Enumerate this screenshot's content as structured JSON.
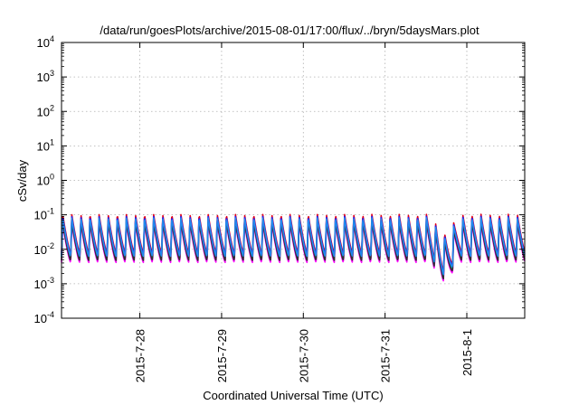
{
  "chart_data": {
    "type": "line",
    "title": "/data/run/goesPlots/archive/2015-08-01/17:00/flux/../bryn/5daysMars.plot",
    "xlabel": "Coordinated Universal Time (UTC)",
    "ylabel": "cSv/day",
    "y_scale": "log",
    "ylim": [
      0.0001,
      10000
    ],
    "xlim": [
      "2015-07-27 01:00",
      "2015-08-01 17:00"
    ],
    "grid": true,
    "legend": "none",
    "y_ticks": [
      {
        "base": "10",
        "exp": "4"
      },
      {
        "base": "10",
        "exp": "3"
      },
      {
        "base": "10",
        "exp": "2"
      },
      {
        "base": "10",
        "exp": "1"
      },
      {
        "base": "10",
        "exp": "0"
      },
      {
        "base": "10",
        "exp": "-1"
      },
      {
        "base": "10",
        "exp": "-2"
      },
      {
        "base": "10",
        "exp": "-3"
      },
      {
        "base": "10",
        "exp": "-4"
      }
    ],
    "x_ticks": [
      "2015-7-28",
      "2015-7-29",
      "2015-7-30",
      "2015-7-31",
      "2015-8-1"
    ],
    "pattern": {
      "description": "periodic sawtooth, one peak every ~2.67 h",
      "period_hours": 2.67,
      "peak_high": 0.08,
      "trough_low": 0.006,
      "dip_time": "2015-07-31 17:30",
      "dip_min": 0.0015
    },
    "series": [
      {
        "color": "#e0001b",
        "offset_dex": 0.12
      },
      {
        "color": "#1a1aff",
        "offset_dex": 0.06
      },
      {
        "color": "#ff00ff",
        "offset_dex": -0.16
      },
      {
        "color": "#00c0c0",
        "offset_dex": -0.02
      },
      {
        "color": "#303030",
        "offset_dex": -0.1
      },
      {
        "color": "#2288ee",
        "offset_dex": 0.02
      }
    ]
  }
}
